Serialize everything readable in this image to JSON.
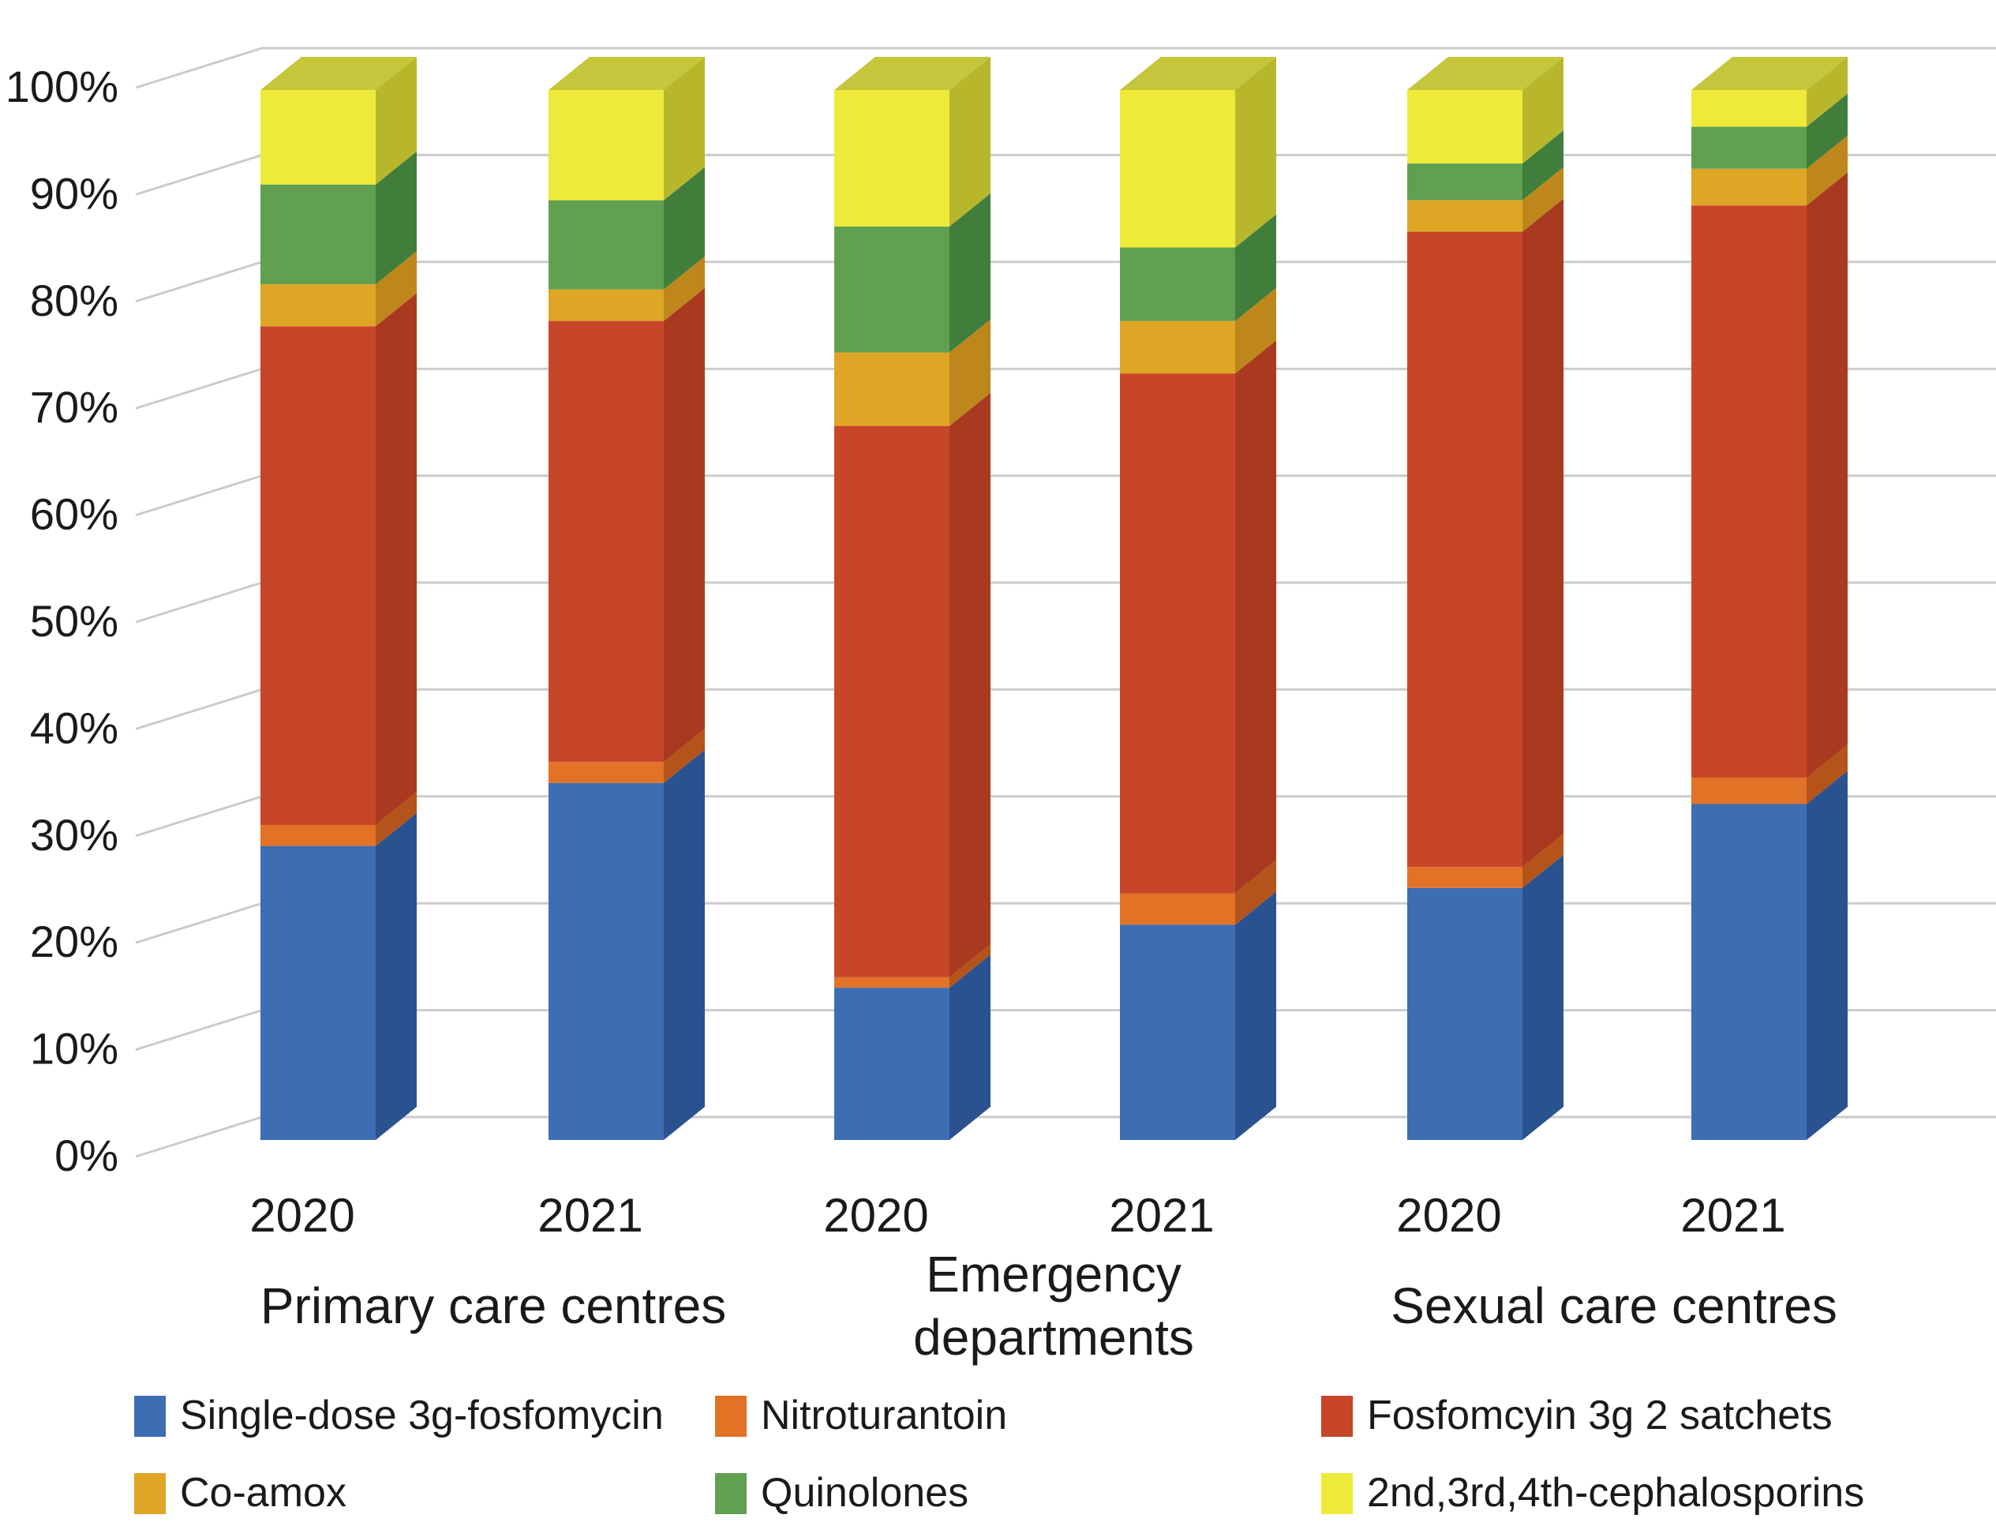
{
  "chart_data": {
    "type": "bar",
    "variant": "3d-100pct-stacked-column",
    "title": "",
    "ylabel": "",
    "xlabel": "",
    "ylim": [
      0,
      100
    ],
    "grid": true,
    "legend_position": "bottom",
    "y_ticks": [
      "0%",
      "10%",
      "20%",
      "30%",
      "40%",
      "50%",
      "60%",
      "70%",
      "80%",
      "90%",
      "100%"
    ],
    "groups": [
      {
        "lines": [
          "Primary care centres"
        ]
      },
      {
        "lines": [
          "Emergency",
          "departments"
        ]
      },
      {
        "lines": [
          "Sexual care centres"
        ]
      }
    ],
    "bars": [
      {
        "group": 0,
        "year": "2020"
      },
      {
        "group": 0,
        "year": "2021"
      },
      {
        "group": 1,
        "year": "2020"
      },
      {
        "group": 1,
        "year": "2021"
      },
      {
        "group": 2,
        "year": "2020"
      },
      {
        "group": 2,
        "year": "2021"
      }
    ],
    "series": [
      {
        "name": "Single-dose 3g-fosfomycin",
        "color": "#3d6db3",
        "side": "#2b5290",
        "top": "#4d7cbf",
        "values": [
          28,
          34,
          14.5,
          20.5,
          24,
          32
        ]
      },
      {
        "name": "Nitroturantoin",
        "color": "#e17226",
        "side": "#b5541a",
        "top": "#e8863c",
        "values": [
          2,
          2,
          1,
          3,
          2,
          2.5
        ]
      },
      {
        "name": "Fosfomcyin 3g 2 satchets",
        "color": "#c74629",
        "side": "#a93a1f",
        "top": "#d05a38",
        "values": [
          47.5,
          42,
          52.5,
          49.5,
          60.5,
          54.5
        ]
      },
      {
        "name": "Co-amox",
        "color": "#dfa626",
        "side": "#bd871b",
        "top": "#e6b33c",
        "values": [
          4,
          3,
          7,
          5,
          3,
          3.5
        ]
      },
      {
        "name": "Quinolones",
        "color": "#61a050",
        "side": "#417e3c",
        "top": "#74b060",
        "values": [
          9.5,
          8.5,
          12,
          7,
          3.5,
          4
        ]
      },
      {
        "name": "2nd,3rd,4th-cephalosporins",
        "color": "#eeea39",
        "side": "#b8b72c",
        "top": "#c5c63b",
        "values": [
          9,
          10.5,
          13,
          15,
          7,
          3.5
        ]
      }
    ]
  },
  "colors": {
    "gridline": "#cbcbcb",
    "text": "#1a1a1a",
    "background": "#ffffff"
  }
}
